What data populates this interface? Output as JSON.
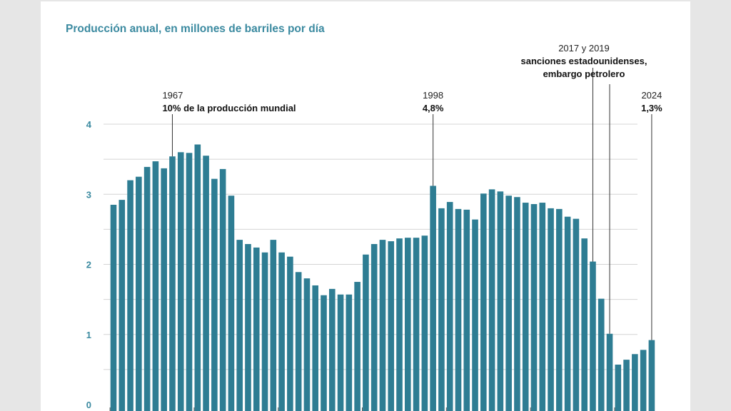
{
  "chart_data": {
    "type": "bar",
    "title": "Producción anual, en millones de barriles por día",
    "xlabel": "",
    "ylabel": "",
    "ylim": [
      0,
      4
    ],
    "yticks": [
      0,
      1,
      2,
      3,
      4
    ],
    "grid": true,
    "colors": {
      "bar": "#2e7d93",
      "grid": "#d4d4d4",
      "axis_text": "#3b8aa0",
      "annotation_line": "#333333"
    },
    "x_start_year": 1960,
    "x_end_year": 2024,
    "values": [
      2.85,
      2.92,
      3.2,
      3.25,
      3.39,
      3.47,
      3.37,
      3.54,
      3.6,
      3.59,
      3.71,
      3.55,
      3.22,
      3.36,
      2.98,
      2.35,
      2.29,
      2.24,
      2.17,
      2.35,
      2.17,
      2.11,
      1.89,
      1.8,
      1.7,
      1.56,
      1.65,
      1.57,
      1.57,
      1.75,
      2.14,
      2.29,
      2.35,
      2.33,
      2.37,
      2.38,
      2.38,
      2.41,
      3.12,
      2.8,
      2.89,
      2.79,
      2.78,
      2.64,
      3.01,
      3.07,
      3.04,
      2.98,
      2.96,
      2.88,
      2.86,
      2.88,
      2.8,
      2.79,
      2.68,
      2.65,
      2.37,
      2.04,
      1.51,
      1.01,
      0.57,
      0.64,
      0.72,
      0.78,
      0.92
    ],
    "annotations": [
      {
        "year": 1967,
        "line1": "1967",
        "line2": "10% de la producción mundial",
        "anchor": "start"
      },
      {
        "year": 1998,
        "line1": "1998",
        "line2": "4,8%",
        "anchor": "middle"
      },
      {
        "year": 2017,
        "line1": "",
        "line2": "",
        "anchor": "end"
      },
      {
        "year": 2019,
        "line1": "2017 y 2019",
        "line2": "sanciones estadounidenses,",
        "line3": "embargo petrolero",
        "anchor": "middle"
      },
      {
        "year": 2024,
        "line1": "2024",
        "line2": "1,3%",
        "anchor": "middle"
      }
    ]
  }
}
